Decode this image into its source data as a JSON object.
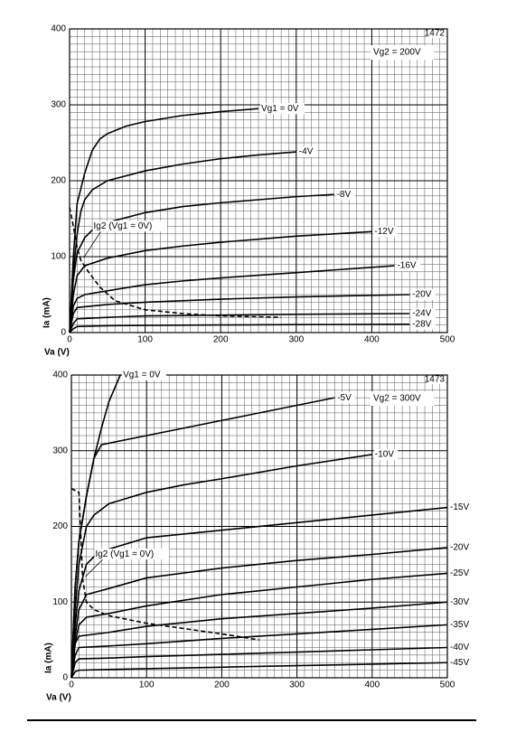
{
  "chart_data": [
    {
      "type": "line",
      "note": "Vg2 = 200V",
      "figure_number": "1472",
      "xlabel": "Va (V)",
      "ylabel": "Ia (mA)",
      "xlim": [
        0,
        500
      ],
      "ylim": [
        0,
        400
      ],
      "xticks": [
        0,
        100,
        200,
        300,
        400,
        500
      ],
      "yticks": [
        0,
        100,
        200,
        300,
        400
      ],
      "grid": true,
      "minor_grid_step": 10,
      "series": [
        {
          "name": "Vg1 = 0V",
          "color": "#000000",
          "x": [
            0,
            5,
            10,
            20,
            30,
            40,
            50,
            75,
            100,
            150,
            200,
            250
          ],
          "values": [
            0,
            100,
            170,
            210,
            240,
            255,
            262,
            272,
            278,
            286,
            291,
            295
          ]
        },
        {
          "name": "-4V",
          "color": "#000000",
          "x": [
            0,
            5,
            10,
            15,
            20,
            30,
            50,
            100,
            150,
            200,
            250,
            300
          ],
          "values": [
            0,
            80,
            130,
            160,
            175,
            188,
            200,
            213,
            222,
            229,
            234,
            238
          ]
        },
        {
          "name": "-8V",
          "color": "#000000",
          "x": [
            0,
            5,
            10,
            20,
            30,
            50,
            100,
            150,
            200,
            250,
            300,
            350
          ],
          "values": [
            0,
            70,
            105,
            125,
            135,
            145,
            158,
            166,
            171,
            175,
            179,
            182
          ]
        },
        {
          "name": "-12V",
          "color": "#000000",
          "x": [
            0,
            5,
            10,
            20,
            50,
            100,
            150,
            200,
            250,
            300,
            350,
            400
          ],
          "values": [
            0,
            50,
            75,
            88,
            98,
            108,
            114,
            119,
            123,
            127,
            130,
            133
          ]
        },
        {
          "name": "-16V",
          "color": "#000000",
          "x": [
            0,
            5,
            10,
            20,
            50,
            100,
            150,
            200,
            300,
            430
          ],
          "values": [
            0,
            35,
            45,
            50,
            55,
            63,
            68,
            72,
            79,
            88
          ]
        },
        {
          "name": "-20V",
          "color": "#000000",
          "x": [
            0,
            5,
            10,
            50,
            100,
            200,
            300,
            450
          ],
          "values": [
            0,
            25,
            33,
            37,
            40,
            44,
            47,
            50
          ]
        },
        {
          "name": "-24V",
          "color": "#000000",
          "x": [
            0,
            5,
            10,
            50,
            100,
            200,
            300,
            450
          ],
          "values": [
            0,
            12,
            18,
            20,
            22,
            23,
            24,
            25
          ]
        },
        {
          "name": "-28V",
          "color": "#000000",
          "x": [
            0,
            5,
            10,
            50,
            100,
            200,
            300,
            450
          ],
          "values": [
            0,
            5,
            8,
            9,
            9.5,
            10,
            10.5,
            11
          ]
        },
        {
          "name": "Ig2 (Vg1 = 0V)",
          "color": "#000000",
          "dashed": true,
          "x": [
            0,
            5,
            10,
            15,
            25,
            40,
            60,
            100,
            150,
            200,
            280
          ],
          "values": [
            165,
            140,
            112,
            95,
            80,
            60,
            42,
            30,
            25,
            22,
            20
          ]
        }
      ]
    },
    {
      "type": "line",
      "note": "Vg2 = 300V",
      "figure_number": "1473",
      "xlabel": "Va (V)",
      "ylabel": "Ia (mA)",
      "xlim": [
        0,
        500
      ],
      "ylim": [
        0,
        400
      ],
      "xticks": [
        0,
        100,
        200,
        300,
        400,
        500
      ],
      "yticks": [
        0,
        100,
        200,
        300,
        400
      ],
      "grid": true,
      "minor_grid_step": 10,
      "series": [
        {
          "name": "Vg1 = 0V",
          "color": "#000000",
          "x": [
            0,
            5,
            10,
            20,
            30,
            40,
            50,
            65
          ],
          "values": [
            0,
            120,
            180,
            240,
            290,
            330,
            365,
            400
          ]
        },
        {
          "name": "-5V",
          "color": "#000000",
          "x": [
            0,
            5,
            10,
            20,
            30,
            40,
            100,
            150,
            200,
            250,
            300,
            350
          ],
          "values": [
            0,
            120,
            180,
            240,
            290,
            308,
            320,
            330,
            340,
            350,
            360,
            370
          ]
        },
        {
          "name": "-10V",
          "color": "#000000",
          "x": [
            0,
            5,
            10,
            20,
            30,
            50,
            100,
            150,
            200,
            300,
            400
          ],
          "values": [
            0,
            90,
            150,
            200,
            215,
            230,
            245,
            255,
            263,
            280,
            295
          ]
        },
        {
          "name": "-15V",
          "color": "#000000",
          "x": [
            0,
            5,
            10,
            20,
            30,
            50,
            100,
            200,
            300,
            400,
            500
          ],
          "values": [
            0,
            70,
            115,
            150,
            160,
            170,
            185,
            195,
            205,
            215,
            225
          ]
        },
        {
          "name": "-20V",
          "color": "#000000",
          "x": [
            0,
            5,
            10,
            20,
            50,
            100,
            200,
            300,
            400,
            500
          ],
          "values": [
            0,
            55,
            90,
            110,
            118,
            132,
            145,
            155,
            163,
            172
          ]
        },
        {
          "name": "-25V",
          "color": "#000000",
          "x": [
            0,
            5,
            10,
            20,
            50,
            100,
            200,
            300,
            400,
            500
          ],
          "values": [
            0,
            45,
            70,
            80,
            85,
            95,
            110,
            120,
            130,
            138
          ]
        },
        {
          "name": "-30V",
          "color": "#000000",
          "x": [
            0,
            5,
            10,
            50,
            100,
            200,
            300,
            400,
            500
          ],
          "values": [
            0,
            45,
            55,
            60,
            68,
            78,
            85,
            92,
            100
          ]
        },
        {
          "name": "-35V",
          "color": "#000000",
          "x": [
            0,
            5,
            10,
            50,
            100,
            200,
            300,
            400,
            500
          ],
          "values": [
            0,
            30,
            40,
            42,
            45,
            52,
            58,
            64,
            70
          ]
        },
        {
          "name": "-40V",
          "color": "#000000",
          "x": [
            0,
            5,
            10,
            50,
            100,
            200,
            300,
            400,
            500
          ],
          "values": [
            0,
            20,
            25,
            26,
            28,
            31,
            34,
            37,
            40
          ]
        },
        {
          "name": "-45V",
          "color": "#000000",
          "x": [
            0,
            5,
            10,
            50,
            100,
            200,
            300,
            400,
            500
          ],
          "values": [
            0,
            8,
            10,
            11,
            12,
            14,
            16,
            18,
            20
          ]
        },
        {
          "name": "Ig2 (Vg1 = 0V)",
          "color": "#000000",
          "dashed": true,
          "x": [
            0,
            10,
            12,
            15,
            20,
            30,
            50,
            100,
            150,
            200,
            250
          ],
          "values": [
            250,
            245,
            200,
            130,
            100,
            90,
            82,
            72,
            65,
            58,
            50
          ]
        }
      ]
    }
  ]
}
